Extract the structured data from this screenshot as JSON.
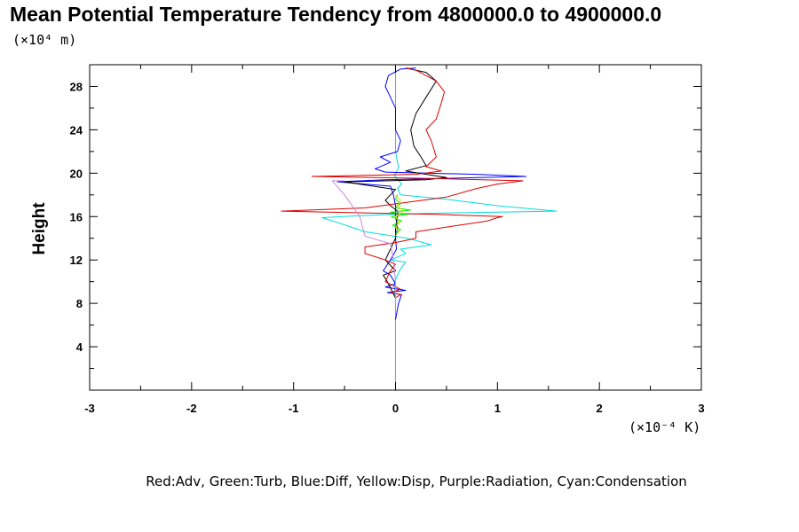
{
  "chart_data": {
    "type": "line",
    "title": "Mean Potential Temperature Tendency from 4800000.0 to 4900000.0",
    "ylabel": "Height",
    "y_unit": "(×10⁴ m)",
    "x_unit": "(×10⁻⁴ K)",
    "xlim": [
      -3,
      3
    ],
    "ylim": [
      0,
      30
    ],
    "x_ticks": [
      -3,
      -2,
      -1,
      0,
      1,
      2,
      3
    ],
    "x_tick_labels": [
      "-3",
      "-2",
      "-1",
      "0",
      "1",
      "2",
      "3"
    ],
    "y_ticks": [
      4,
      8,
      12,
      16,
      20,
      24,
      28
    ],
    "y_tick_labels": [
      "4",
      "8",
      "12",
      "16",
      "20",
      "24",
      "28"
    ],
    "grid": false,
    "legend": "Red:Adv, Green:Turb, Blue:Diff, Yellow:Disp, Purple:Radiation, Cyan:Condensation",
    "series": [
      {
        "color": "#00dddd",
        "points": [
          [
            0,
            0
          ],
          [
            0,
            6
          ],
          [
            0,
            8
          ],
          [
            -0.01,
            10
          ],
          [
            0.05,
            11.2
          ],
          [
            0.1,
            11.8
          ],
          [
            -0.05,
            12.0
          ],
          [
            0.1,
            12.6
          ],
          [
            0.05,
            13.0
          ],
          [
            0.35,
            13.4
          ],
          [
            0.12,
            14.0
          ],
          [
            -0.3,
            14.6
          ],
          [
            -0.55,
            15.4
          ],
          [
            -0.72,
            15.9
          ],
          [
            -0.3,
            16.1
          ],
          [
            0.3,
            16.3
          ],
          [
            1.58,
            16.5
          ],
          [
            1.0,
            17.0
          ],
          [
            0.5,
            17.6
          ],
          [
            0.05,
            18.0
          ],
          [
            0.02,
            18.6
          ],
          [
            0.06,
            19.0
          ],
          [
            -0.01,
            19.8
          ],
          [
            0.03,
            20.5
          ],
          [
            0.0,
            22
          ],
          [
            0.0,
            26
          ],
          [
            0.0,
            29.7
          ]
        ]
      },
      {
        "color": "#0000ff",
        "points": [
          [
            0,
            6.5
          ],
          [
            0.03,
            8.0
          ],
          [
            0.06,
            8.8
          ],
          [
            -0.08,
            9.0
          ],
          [
            0.1,
            9.2
          ],
          [
            -0.1,
            9.5
          ],
          [
            0.0,
            9.8
          ],
          [
            -0.05,
            10.6
          ],
          [
            -0.12,
            11.0
          ],
          [
            -0.05,
            12.0
          ],
          [
            0.01,
            13.0
          ],
          [
            0.0,
            14.0
          ],
          [
            0.02,
            15.0
          ],
          [
            0.0,
            16.0
          ],
          [
            0.0,
            17.0
          ],
          [
            -0.02,
            18.0
          ],
          [
            -0.05,
            18.8
          ],
          [
            -0.57,
            19.2
          ],
          [
            -0.1,
            19.4
          ],
          [
            1.28,
            19.7
          ],
          [
            0.8,
            19.9
          ],
          [
            0.3,
            20.0
          ],
          [
            -0.1,
            20.1
          ],
          [
            -0.2,
            20.4
          ],
          [
            -0.05,
            21.0
          ],
          [
            -0.15,
            21.5
          ],
          [
            0.02,
            22.0
          ],
          [
            0.05,
            23.0
          ],
          [
            0.0,
            24.0
          ],
          [
            0.0,
            26.0
          ],
          [
            -0.05,
            27.0
          ],
          [
            -0.1,
            28.0
          ],
          [
            -0.07,
            29.0
          ],
          [
            0.05,
            29.6
          ],
          [
            0.2,
            29.7
          ]
        ]
      },
      {
        "color": "#000000",
        "points": [
          [
            0,
            8.5
          ],
          [
            -0.08,
            10.0
          ],
          [
            -0.12,
            10.6
          ],
          [
            0.0,
            11.0
          ],
          [
            -0.1,
            12.0
          ],
          [
            -0.05,
            13.0
          ],
          [
            0.0,
            14.0
          ],
          [
            0.0,
            15.0
          ],
          [
            0.02,
            16.0
          ],
          [
            0.02,
            16.5
          ],
          [
            -0.05,
            17.0
          ],
          [
            -0.1,
            17.5
          ],
          [
            -0.05,
            18.0
          ],
          [
            0.0,
            18.5
          ],
          [
            -0.5,
            19.2
          ],
          [
            0.3,
            19.4
          ],
          [
            0.5,
            19.6
          ],
          [
            0.1,
            20.2
          ],
          [
            0.3,
            20.7
          ],
          [
            0.25,
            21.5
          ],
          [
            0.18,
            22.5
          ],
          [
            0.15,
            24.0
          ],
          [
            0.2,
            25.5
          ],
          [
            0.3,
            27.0
          ],
          [
            0.4,
            28.5
          ],
          [
            0.3,
            29.3
          ],
          [
            0.1,
            29.7
          ]
        ]
      },
      {
        "color": "#dd0000",
        "points": [
          [
            0,
            8.5
          ],
          [
            0.05,
            8.8
          ],
          [
            -0.05,
            9.0
          ],
          [
            0.05,
            9.3
          ],
          [
            -0.1,
            10.0
          ],
          [
            -0.05,
            11.0
          ],
          [
            0.0,
            11.6
          ],
          [
            -0.1,
            12.0
          ],
          [
            -0.3,
            12.6
          ],
          [
            -0.3,
            13.2
          ],
          [
            0.0,
            13.6
          ],
          [
            0.2,
            14.0
          ],
          [
            0.2,
            14.6
          ],
          [
            0.9,
            15.6
          ],
          [
            1.0,
            15.9
          ],
          [
            1.05,
            16.0
          ],
          [
            0.4,
            16.2
          ],
          [
            -1.12,
            16.5
          ],
          [
            -0.3,
            16.8
          ],
          [
            0.5,
            17.8
          ],
          [
            0.8,
            18.6
          ],
          [
            1.0,
            19.0
          ],
          [
            1.25,
            19.3
          ],
          [
            0.4,
            19.5
          ],
          [
            -0.82,
            19.7
          ],
          [
            0.2,
            19.9
          ],
          [
            0.45,
            20.2
          ],
          [
            0.3,
            20.6
          ],
          [
            0.4,
            21.5
          ],
          [
            0.35,
            23.0
          ],
          [
            0.3,
            24.0
          ],
          [
            0.4,
            25.0
          ],
          [
            0.45,
            26.5
          ],
          [
            0.48,
            27.5
          ],
          [
            0.4,
            28.5
          ],
          [
            0.2,
            29.5
          ],
          [
            0.1,
            29.7
          ]
        ]
      },
      {
        "color": "#cc88dd",
        "points": [
          [
            0,
            8.5
          ],
          [
            0.0,
            10.0
          ],
          [
            -0.02,
            12.0
          ],
          [
            -0.05,
            13.5
          ],
          [
            -0.3,
            14.2
          ],
          [
            -0.35,
            16.0
          ],
          [
            -0.5,
            18.0
          ],
          [
            -0.62,
            19.3
          ],
          [
            -0.5,
            19.3
          ]
        ]
      },
      {
        "color": "#00ee00",
        "points": [
          [
            0.0,
            14.4
          ],
          [
            0.05,
            14.8
          ],
          [
            -0.03,
            15.2
          ],
          [
            0.06,
            15.6
          ],
          [
            -0.04,
            16.0
          ],
          [
            0.12,
            16.2
          ],
          [
            -0.05,
            16.4
          ],
          [
            0.15,
            16.6
          ],
          [
            0.0,
            16.8
          ],
          [
            0.05,
            17.2
          ],
          [
            0.0,
            17.6
          ],
          [
            0.02,
            18.0
          ]
        ]
      },
      {
        "color": "#dddd00",
        "points": [
          [
            0.0,
            14.2
          ],
          [
            0.03,
            14.6
          ],
          [
            0.0,
            15.0
          ],
          [
            0.04,
            15.5
          ],
          [
            0.0,
            16.0
          ],
          [
            0.08,
            16.5
          ],
          [
            0.02,
            17.0
          ],
          [
            0.05,
            17.5
          ],
          [
            0.0,
            18.0
          ]
        ]
      }
    ]
  }
}
